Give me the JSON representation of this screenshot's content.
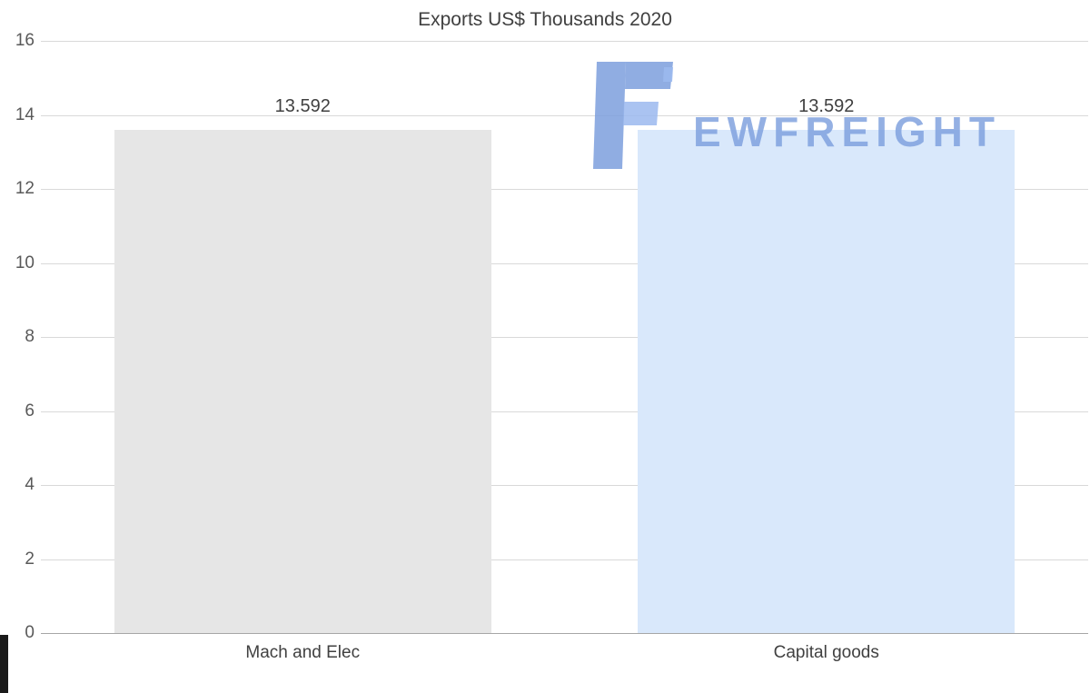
{
  "title": "Exports US$ Thousands 2020",
  "watermark": {
    "text": "EWFREIGHT"
  },
  "colors": {
    "bar_gray": "#e6e6e6",
    "bar_blue": "#d9e8fb",
    "grid": "#d9d9d9",
    "axis": "#a6a6a6",
    "title_text": "#404040",
    "tick_text": "#595959",
    "watermark_blue": "#7d9fdd"
  },
  "chart_data": {
    "type": "bar",
    "title": "Exports US$ Thousands 2020",
    "categories": [
      "Mach and Elec",
      "Capital goods"
    ],
    "values": [
      13.592,
      13.592
    ],
    "value_labels": [
      "13.592",
      "13.592"
    ],
    "bar_colors": [
      "#e6e6e6",
      "#d9e8fb"
    ],
    "xlabel": "",
    "ylabel": "",
    "ylim": [
      0,
      16
    ],
    "yticks": [
      0,
      2,
      4,
      6,
      8,
      10,
      12,
      14,
      16
    ],
    "grid": true,
    "legend": "none"
  }
}
